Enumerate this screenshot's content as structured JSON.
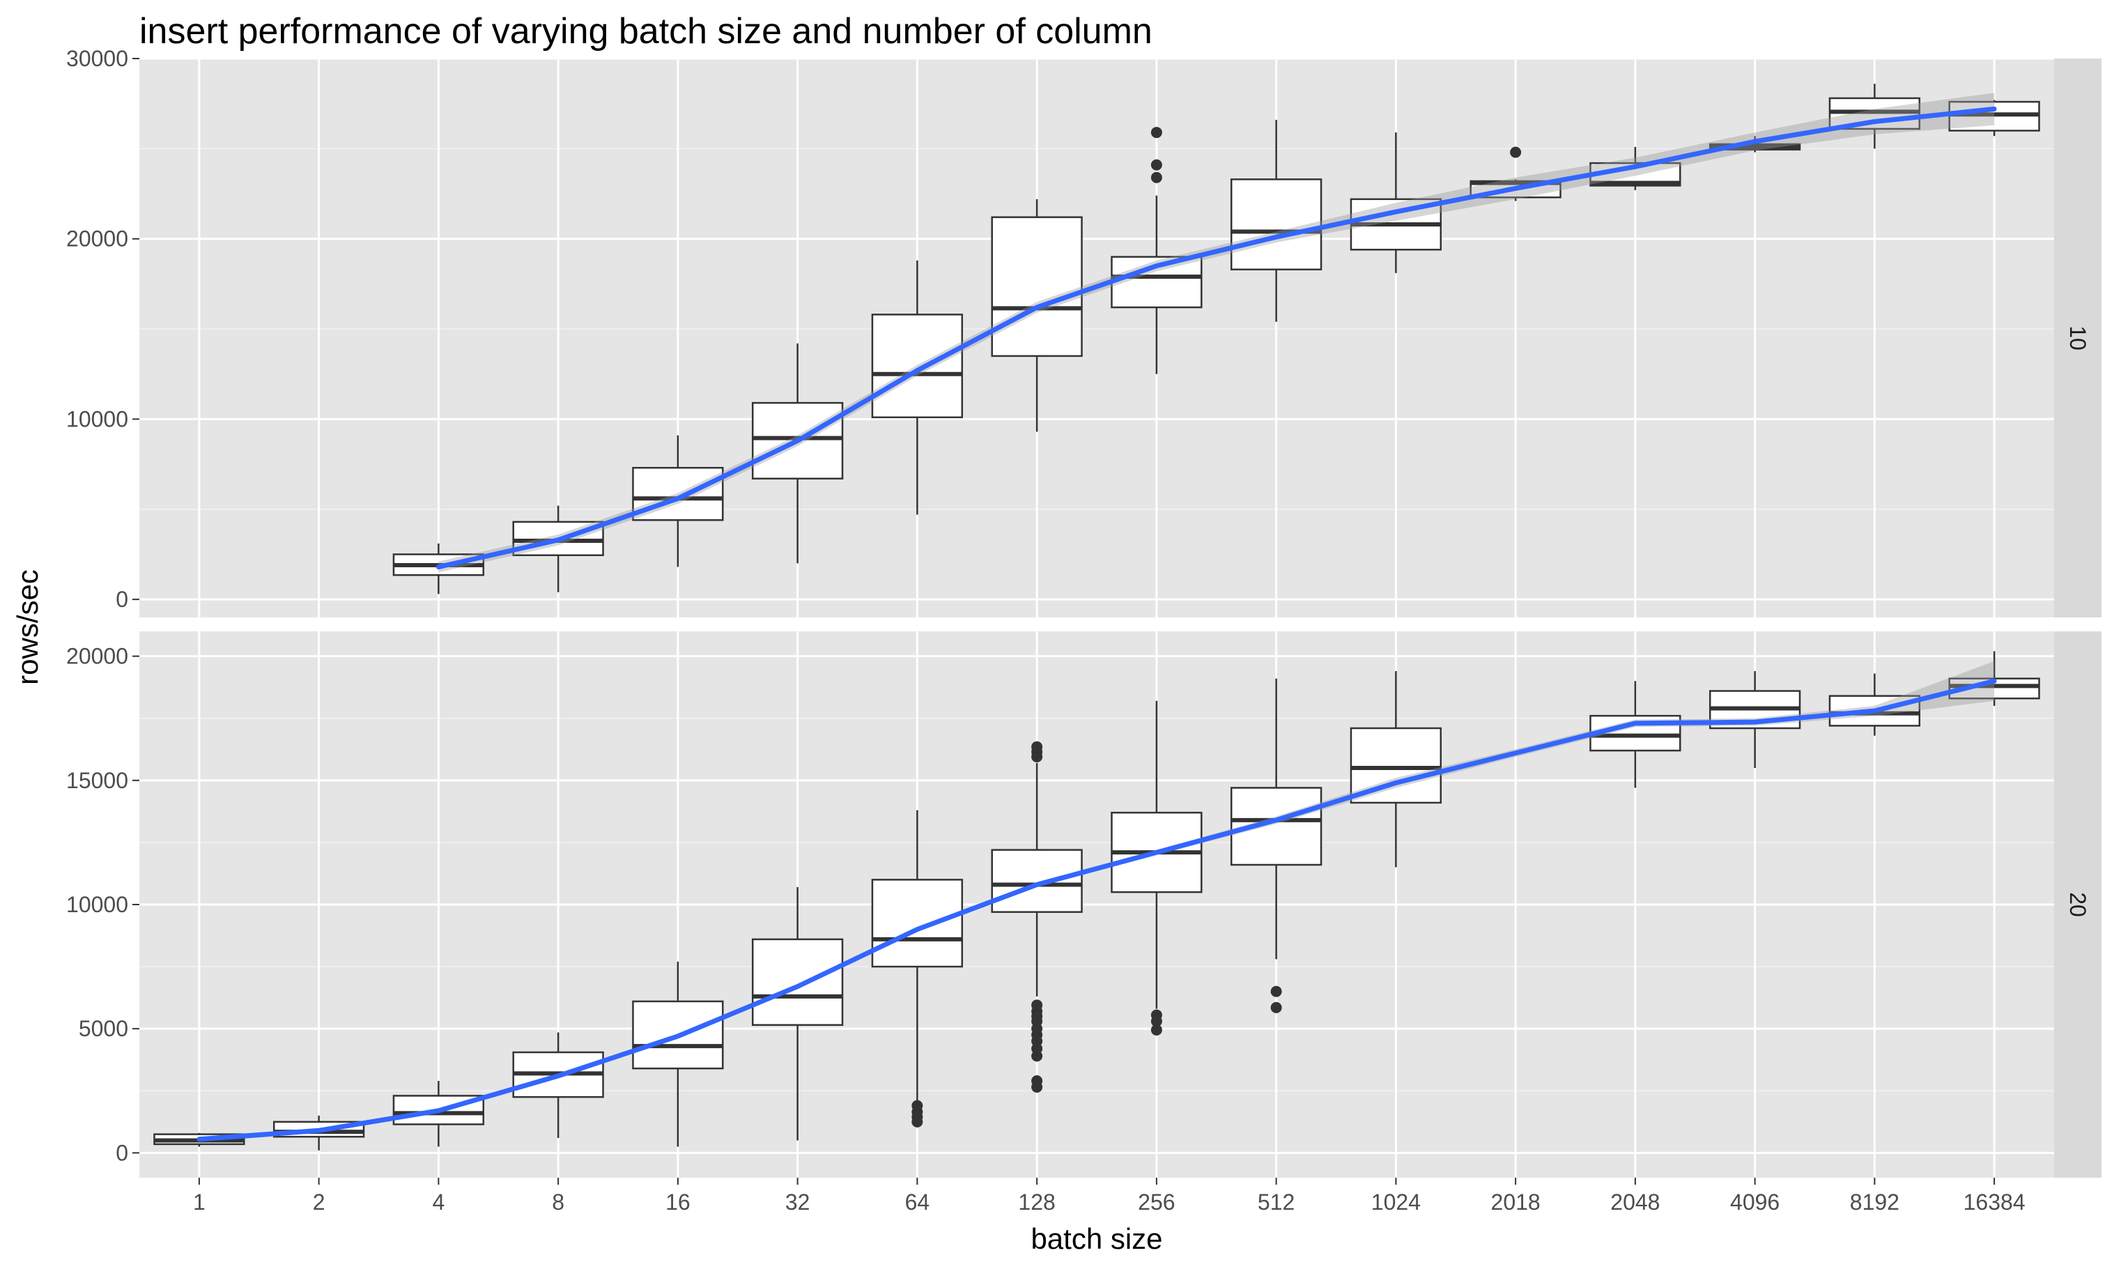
{
  "chart_data": {
    "type": "box",
    "title": "insert performance of varying batch size and number of column",
    "xlabel": "batch size",
    "ylabel": "rows/sec",
    "categories": [
      "1",
      "2",
      "4",
      "8",
      "16",
      "32",
      "64",
      "128",
      "256",
      "512",
      "1024",
      "2018",
      "2048",
      "4096",
      "8192",
      "16384"
    ],
    "grid": true,
    "smooth_color": "#3366FF",
    "panel_background": "#E5E5E5",
    "strip_background": "#D9D9D9",
    "panels": [
      {
        "strip_label": "10",
        "ylim": [
          -1000,
          30000
        ],
        "yticks": [
          0,
          10000,
          20000,
          30000
        ],
        "boxes": [
          {
            "x": "4",
            "whisker_low": 300,
            "q1": 1350,
            "median": 1900,
            "q3": 2500,
            "whisker_high": 3100,
            "outliers": []
          },
          {
            "x": "8",
            "whisker_low": 400,
            "q1": 2450,
            "median": 3250,
            "q3": 4300,
            "whisker_high": 5200,
            "outliers": []
          },
          {
            "x": "16",
            "whisker_low": 1800,
            "q1": 4400,
            "median": 5600,
            "q3": 7300,
            "whisker_high": 9100,
            "outliers": []
          },
          {
            "x": "32",
            "whisker_low": 2000,
            "q1": 6700,
            "median": 8950,
            "q3": 10900,
            "whisker_high": 14200,
            "outliers": []
          },
          {
            "x": "64",
            "whisker_low": 4700,
            "q1": 10100,
            "median": 12500,
            "q3": 15800,
            "whisker_high": 18800,
            "outliers": []
          },
          {
            "x": "128",
            "whisker_low": 9300,
            "q1": 13500,
            "median": 16150,
            "q3": 21200,
            "whisker_high": 22200,
            "outliers": []
          },
          {
            "x": "256",
            "whisker_low": 12500,
            "q1": 16200,
            "median": 17900,
            "q3": 19000,
            "whisker_high": 22400,
            "outliers": [
              23400,
              24100,
              25900
            ]
          },
          {
            "x": "512",
            "whisker_low": 15400,
            "q1": 18300,
            "median": 20400,
            "q3": 23300,
            "whisker_high": 26600,
            "outliers": []
          },
          {
            "x": "1024",
            "whisker_low": 18100,
            "q1": 19400,
            "median": 20800,
            "q3": 22200,
            "whisker_high": 25900,
            "outliers": []
          },
          {
            "x": "2018",
            "whisker_low": 22100,
            "q1": 22300,
            "median": 23100,
            "q3": 23200,
            "whisker_high": 23300,
            "outliers": [
              24800
            ]
          },
          {
            "x": "2048",
            "whisker_low": 22700,
            "q1": 22950,
            "median": 23100,
            "q3": 24200,
            "whisker_high": 25100,
            "outliers": []
          },
          {
            "x": "4096",
            "whisker_low": 24800,
            "q1": 24950,
            "median": 25100,
            "q3": 25250,
            "whisker_high": 25700,
            "outliers": []
          },
          {
            "x": "8192",
            "whisker_low": 25000,
            "q1": 26100,
            "median": 27050,
            "q3": 27800,
            "whisker_high": 28600,
            "outliers": []
          },
          {
            "x": "16384",
            "whisker_low": 25700,
            "q1": 26000,
            "median": 26900,
            "q3": 27600,
            "whisker_high": 27700,
            "outliers": []
          }
        ],
        "smooth": {
          "x": [
            "4",
            "8",
            "16",
            "32",
            "64",
            "128",
            "256",
            "512",
            "1024",
            "2018",
            "2048",
            "4096",
            "8192",
            "16384"
          ],
          "y": [
            1800,
            3300,
            5600,
            8800,
            12700,
            16200,
            18500,
            20100,
            21500,
            22800,
            24000,
            25400,
            26500,
            27200
          ],
          "ci_lower": [
            1500,
            3000,
            5300,
            8500,
            12400,
            15900,
            18200,
            19800,
            21000,
            22200,
            23500,
            24900,
            25800,
            26300
          ],
          "ci_upper": [
            2100,
            3600,
            5900,
            9100,
            13000,
            16500,
            18800,
            20400,
            22000,
            23400,
            24500,
            25900,
            27200,
            28100
          ]
        }
      },
      {
        "strip_label": "20",
        "ylim": [
          -1000,
          21000
        ],
        "yticks": [
          0,
          5000,
          10000,
          15000,
          20000
        ],
        "boxes": [
          {
            "x": "1",
            "whisker_low": 250,
            "q1": 350,
            "median": 500,
            "q3": 750,
            "whisker_high": 800,
            "outliers": []
          },
          {
            "x": "2",
            "whisker_low": 100,
            "q1": 650,
            "median": 850,
            "q3": 1250,
            "whisker_high": 1500,
            "outliers": []
          },
          {
            "x": "4",
            "whisker_low": 250,
            "q1": 1150,
            "median": 1600,
            "q3": 2300,
            "whisker_high": 2900,
            "outliers": []
          },
          {
            "x": "8",
            "whisker_low": 600,
            "q1": 2250,
            "median": 3200,
            "q3": 4050,
            "whisker_high": 4850,
            "outliers": []
          },
          {
            "x": "16",
            "whisker_low": 250,
            "q1": 3400,
            "median": 4300,
            "q3": 6100,
            "whisker_high": 7700,
            "outliers": []
          },
          {
            "x": "32",
            "whisker_low": 500,
            "q1": 5150,
            "median": 6300,
            "q3": 8600,
            "whisker_high": 10700,
            "outliers": []
          },
          {
            "x": "64",
            "whisker_low": 2100,
            "q1": 7500,
            "median": 8600,
            "q3": 11000,
            "whisker_high": 13800,
            "outliers": [
              1250,
              1450,
              1650,
              1900
            ]
          },
          {
            "x": "128",
            "whisker_low": 6300,
            "q1": 9700,
            "median": 10800,
            "q3": 12200,
            "whisker_high": 15700,
            "outliers": [
              2650,
              2900,
              3900,
              4200,
              4500,
              4750,
              5000,
              5300,
              5500,
              5700,
              5950,
              15950,
              16150,
              16350
            ]
          },
          {
            "x": "256",
            "whisker_low": 5800,
            "q1": 10500,
            "median": 12100,
            "q3": 13700,
            "whisker_high": 18200,
            "outliers": [
              4950,
              5300,
              5550
            ]
          },
          {
            "x": "512",
            "whisker_low": 7800,
            "q1": 11600,
            "median": 13400,
            "q3": 14700,
            "whisker_high": 19100,
            "outliers": [
              5850,
              6500
            ]
          },
          {
            "x": "1024",
            "whisker_low": 11500,
            "q1": 14100,
            "median": 15500,
            "q3": 17100,
            "whisker_high": 19400,
            "outliers": []
          },
          {
            "x": "2048",
            "whisker_low": 14700,
            "q1": 16200,
            "median": 16800,
            "q3": 17600,
            "whisker_high": 19000,
            "outliers": []
          },
          {
            "x": "4096",
            "whisker_low": 15500,
            "q1": 17100,
            "median": 17900,
            "q3": 18600,
            "whisker_high": 19400,
            "outliers": []
          },
          {
            "x": "8192",
            "whisker_low": 16800,
            "q1": 17200,
            "median": 17700,
            "q3": 18400,
            "whisker_high": 19300,
            "outliers": []
          },
          {
            "x": "16384",
            "whisker_low": 18000,
            "q1": 18300,
            "median": 18800,
            "q3": 19100,
            "whisker_high": 20200,
            "outliers": []
          }
        ],
        "smooth": {
          "x": [
            "1",
            "2",
            "4",
            "8",
            "16",
            "32",
            "64",
            "128",
            "256",
            "512",
            "1024",
            "2018",
            "2048",
            "4096",
            "8192",
            "16384"
          ],
          "y": [
            550,
            900,
            1700,
            3100,
            4700,
            6700,
            9000,
            10800,
            12100,
            13400,
            14900,
            16100,
            17300,
            17350,
            17800,
            19000
          ],
          "ci_lower": [
            450,
            800,
            1600,
            3000,
            4600,
            6600,
            8900,
            10700,
            12000,
            13250,
            14700,
            15950,
            17150,
            17200,
            17600,
            18200
          ],
          "ci_upper": [
            650,
            1000,
            1800,
            3200,
            4800,
            6800,
            9100,
            10900,
            12200,
            13550,
            15100,
            16250,
            17450,
            17500,
            18000,
            19800
          ]
        }
      }
    ]
  }
}
